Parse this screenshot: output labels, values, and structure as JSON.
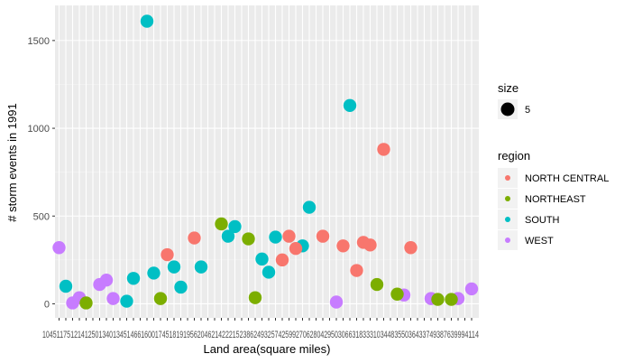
{
  "chart_data": {
    "type": "scatter",
    "title": "",
    "xlabel": "Land area(square miles)",
    "ylabel": "# storm events in 1991",
    "ylim": [
      -80,
      1700
    ],
    "y_ticks": [
      0,
      500,
      1000,
      1500
    ],
    "grid": true,
    "legend_position": "right",
    "x_tick_labels": [
      "1045",
      "1175",
      "1214",
      "1250",
      "1340",
      "1345",
      "1466",
      "1600",
      "1745",
      "1819",
      "1956",
      "2046",
      "2142",
      "2215",
      "2386",
      "2493",
      "2574",
      "2599",
      "2706",
      "2804",
      "2950",
      "3066",
      "3183",
      "3310",
      "3448",
      "3550",
      "3643",
      "3749",
      "3876",
      "3999",
      "4114"
    ],
    "size_legend": {
      "title": "size",
      "entries": [
        {
          "label": "5"
        }
      ]
    },
    "region_legend": {
      "title": "region",
      "entries": [
        {
          "label": "NORTH CENTRAL",
          "color": "#F8766D"
        },
        {
          "label": "NORTHEAST",
          "color": "#7CAE00"
        },
        {
          "label": "SOUTH",
          "color": "#00BFC4"
        },
        {
          "label": "WEST",
          "color": "#C77CFF"
        }
      ]
    },
    "series": [
      {
        "region": "WEST",
        "points": [
          {
            "x": 1,
            "y": 320
          },
          {
            "x": 3,
            "y": 5
          },
          {
            "x": 4,
            "y": 35
          },
          {
            "x": 7,
            "y": 110
          },
          {
            "x": 8,
            "y": 135
          },
          {
            "x": 9,
            "y": 30
          },
          {
            "x": 42,
            "y": 10
          },
          {
            "x": 52,
            "y": 50
          },
          {
            "x": 56,
            "y": 30
          },
          {
            "x": 60,
            "y": 30
          },
          {
            "x": 62,
            "y": 85
          }
        ]
      },
      {
        "region": "NORTHEAST",
        "points": [
          {
            "x": 5,
            "y": 5
          },
          {
            "x": 16,
            "y": 30
          },
          {
            "x": 25,
            "y": 455
          },
          {
            "x": 29,
            "y": 370
          },
          {
            "x": 30,
            "y": 35
          },
          {
            "x": 48,
            "y": 110
          },
          {
            "x": 51,
            "y": 55
          },
          {
            "x": 57,
            "y": 25
          },
          {
            "x": 59,
            "y": 25
          }
        ]
      },
      {
        "region": "SOUTH",
        "points": [
          {
            "x": 2,
            "y": 100
          },
          {
            "x": 11,
            "y": 15
          },
          {
            "x": 12,
            "y": 145
          },
          {
            "x": 14,
            "y": 1610
          },
          {
            "x": 15,
            "y": 175
          },
          {
            "x": 18,
            "y": 210
          },
          {
            "x": 19,
            "y": 95
          },
          {
            "x": 22,
            "y": 210
          },
          {
            "x": 26,
            "y": 385
          },
          {
            "x": 27,
            "y": 440
          },
          {
            "x": 31,
            "y": 255
          },
          {
            "x": 32,
            "y": 180
          },
          {
            "x": 33,
            "y": 380
          },
          {
            "x": 37,
            "y": 330
          },
          {
            "x": 38,
            "y": 550
          },
          {
            "x": 44,
            "y": 1130
          }
        ]
      },
      {
        "region": "NORTH CENTRAL",
        "points": [
          {
            "x": 17,
            "y": 280
          },
          {
            "x": 21,
            "y": 375
          },
          {
            "x": 34,
            "y": 250
          },
          {
            "x": 35,
            "y": 385
          },
          {
            "x": 36,
            "y": 315
          },
          {
            "x": 40,
            "y": 385
          },
          {
            "x": 43,
            "y": 330
          },
          {
            "x": 45,
            "y": 190
          },
          {
            "x": 46,
            "y": 350
          },
          {
            "x": 47,
            "y": 335
          },
          {
            "x": 49,
            "y": 880
          },
          {
            "x": 53,
            "y": 320
          }
        ]
      }
    ]
  }
}
